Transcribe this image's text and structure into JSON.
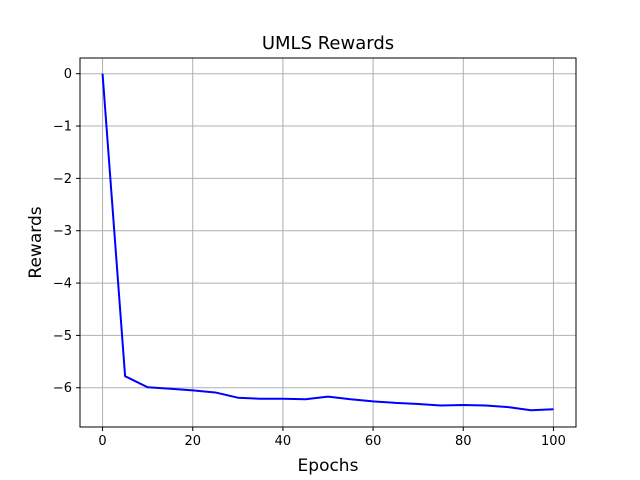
{
  "chart_data": {
    "type": "line",
    "title": "UMLS Rewards",
    "xlabel": "Epochs",
    "ylabel": "Rewards",
    "xlim": [
      -5,
      105
    ],
    "ylim": [
      -6.75,
      0.3
    ],
    "xticks": [
      0,
      20,
      40,
      60,
      80,
      100
    ],
    "yticks": [
      0,
      -1,
      -2,
      -3,
      -4,
      -5,
      -6
    ],
    "xtick_labels": [
      "0",
      "20",
      "40",
      "60",
      "80",
      "100"
    ],
    "ytick_labels": [
      "0",
      "−1",
      "−2",
      "−3",
      "−4",
      "−5",
      "−6"
    ],
    "grid": true,
    "series": [
      {
        "color": "#0000ff",
        "x": [
          0,
          5,
          10,
          15,
          20,
          25,
          30,
          35,
          40,
          45,
          50,
          55,
          60,
          65,
          70,
          75,
          80,
          85,
          90,
          95,
          100
        ],
        "y": [
          0,
          -5.78,
          -5.99,
          -6.02,
          -6.05,
          -6.09,
          -6.19,
          -6.21,
          -6.21,
          -6.22,
          -6.17,
          -6.22,
          -6.26,
          -6.29,
          -6.31,
          -6.34,
          -6.33,
          -6.34,
          -6.37,
          -6.43,
          -6.41
        ]
      }
    ]
  }
}
